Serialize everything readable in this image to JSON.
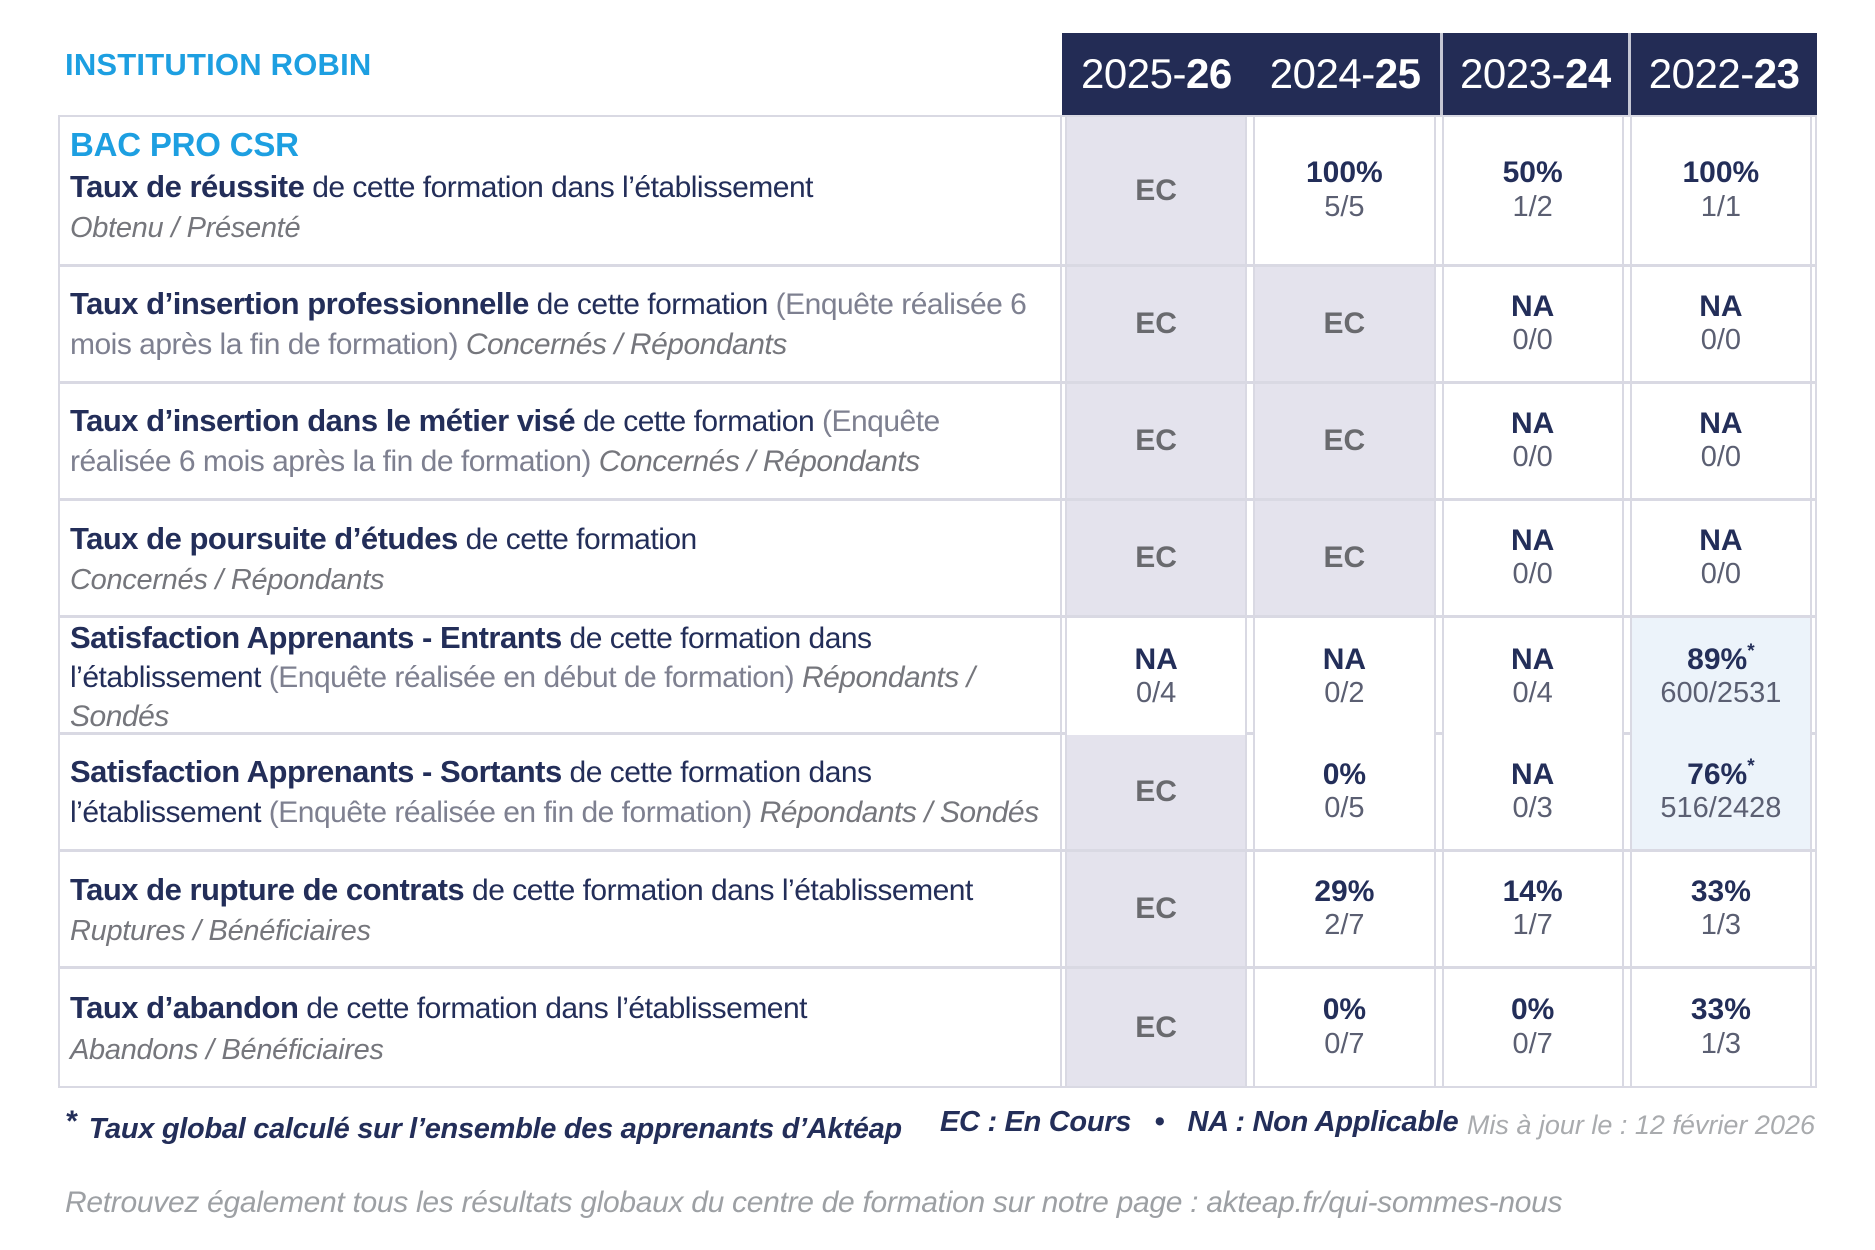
{
  "header": {
    "institution": "INSTITUTION ROBIN",
    "years": [
      {
        "prefix": "2025-",
        "suffix": "26"
      },
      {
        "prefix": "2024-",
        "suffix": "25"
      },
      {
        "prefix": "2023-",
        "suffix": "24"
      },
      {
        "prefix": "2022-",
        "suffix": "23"
      }
    ]
  },
  "table": {
    "program": "BAC PRO CSR",
    "rows": [
      {
        "title": "Taux de réussite",
        "desc": " de cette formation dans l’établissement",
        "paren": "",
        "sub_inline": "",
        "sub_block": "Obtenu / Présenté",
        "cells": [
          {
            "v": "EC",
            "f": ""
          },
          {
            "v": "100%",
            "f": "5/5"
          },
          {
            "v": "50%",
            "f": "1/2"
          },
          {
            "v": "100%",
            "f": "1/1"
          }
        ]
      },
      {
        "title": "Taux d’insertion professionnelle",
        "desc": " de cette formation ",
        "paren": "(Enquête réalisée 6 mois après la fin de formation) ",
        "sub_inline": "Concernés / Répondants",
        "sub_block": "",
        "cells": [
          {
            "v": "EC",
            "f": ""
          },
          {
            "v": "EC",
            "f": ""
          },
          {
            "v": "NA",
            "f": "0/0"
          },
          {
            "v": "NA",
            "f": "0/0"
          }
        ]
      },
      {
        "title": "Taux d’insertion dans le métier visé",
        "desc": " de cette formation ",
        "paren": "(Enquête réalisée 6 mois après la fin de formation) ",
        "sub_inline": "Concernés / Répondants",
        "sub_block": "",
        "cells": [
          {
            "v": "EC",
            "f": ""
          },
          {
            "v": "EC",
            "f": ""
          },
          {
            "v": "NA",
            "f": "0/0"
          },
          {
            "v": "NA",
            "f": "0/0"
          }
        ]
      },
      {
        "title": "Taux de poursuite d’études",
        "desc": " de cette formation",
        "paren": "",
        "sub_inline": "",
        "sub_block": "Concernés / Répondants",
        "cells": [
          {
            "v": "EC",
            "f": ""
          },
          {
            "v": "EC",
            "f": ""
          },
          {
            "v": "NA",
            "f": "0/0"
          },
          {
            "v": "NA",
            "f": "0/0"
          }
        ]
      },
      {
        "title": "Satisfaction Apprenants - Entrants",
        "desc": " de cette formation dans l’établissement ",
        "paren": "(Enquête réalisée en début de formation) ",
        "sub_inline": "Répondants / Sondés",
        "sub_block": "",
        "cells": [
          {
            "v": "NA",
            "f": "0/4"
          },
          {
            "v": "NA",
            "f": "0/2"
          },
          {
            "v": "NA",
            "f": "0/4"
          },
          {
            "v": "89%",
            "f": "600/2531",
            "star": true,
            "hl": true
          }
        ]
      },
      {
        "title": "Satisfaction Apprenants - Sortants",
        "desc": " de cette formation dans l’établissement ",
        "paren": "(Enquête réalisée en fin de formation) ",
        "sub_inline": "Répondants / Sondés",
        "sub_block": "",
        "cells": [
          {
            "v": "EC",
            "f": ""
          },
          {
            "v": "0%",
            "f": "0/5"
          },
          {
            "v": "NA",
            "f": "0/3"
          },
          {
            "v": "76%",
            "f": "516/2428",
            "star": true,
            "hl": true
          }
        ]
      },
      {
        "title": "Taux de rupture de contrats",
        "desc": " de cette formation dans l’établissement",
        "paren": "",
        "sub_inline": "",
        "sub_block": "Ruptures / Bénéficiaires",
        "cells": [
          {
            "v": "EC",
            "f": ""
          },
          {
            "v": "29%",
            "f": "2/7"
          },
          {
            "v": "14%",
            "f": "1/7"
          },
          {
            "v": "33%",
            "f": "1/3"
          }
        ]
      },
      {
        "title": "Taux d’abandon",
        "desc": " de cette formation dans l’établissement",
        "paren": "",
        "sub_inline": "",
        "sub_block": "Abandons / Bénéficiaires",
        "cells": [
          {
            "v": "EC",
            "f": ""
          },
          {
            "v": "0%",
            "f": "0/7"
          },
          {
            "v": "0%",
            "f": "0/7"
          },
          {
            "v": "33%",
            "f": "1/3"
          }
        ]
      }
    ]
  },
  "footer": {
    "star": "*",
    "note": "Taux global calculé sur l’ensemble des apprenants d’Aktéap",
    "legend": "EC : En Cours   •   NA : Non Applicable",
    "updated": "Mis à jour le : 12 février 2026",
    "bottom": "Retrouvez également tous les résultats globaux du centre de formation sur notre page : akteap.fr/qui-sommes-nous"
  },
  "colors": {
    "navy": "#232e59",
    "header_navy": "#232c55",
    "cyan": "#1d9fe1",
    "ec_cell_bg": "#e4e3ed",
    "highlight_cell_bg": "#ecf3fa",
    "grid_border": "#d9d9e3",
    "gray_text": "#75767c",
    "fraction_text": "#5b5f72",
    "updated_text": "#a9abae"
  }
}
